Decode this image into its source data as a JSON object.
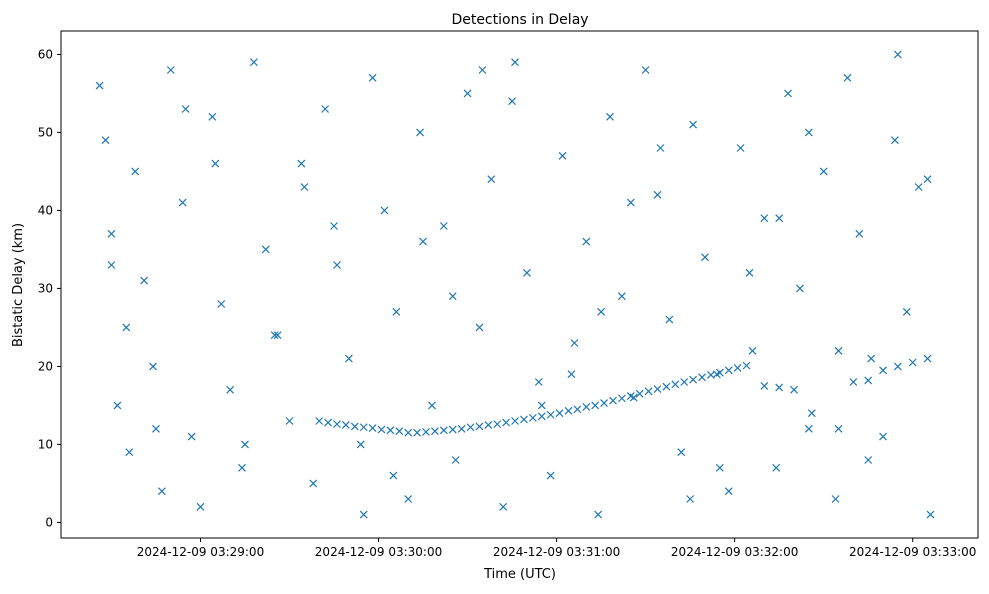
{
  "chart_data": {
    "type": "scatter",
    "title": "Detections in Delay",
    "xlabel": "Time (UTC)",
    "ylabel": "Bistatic Delay (km)",
    "x_axis_kind": "datetime",
    "xlim": [
      "2024-12-09 03:28:13",
      "2024-12-09 03:33:22"
    ],
    "ylim": [
      -2,
      63
    ],
    "x_ticks": [
      "2024-12-09 03:29:00",
      "2024-12-09 03:30:00",
      "2024-12-09 03:31:00",
      "2024-12-09 03:32:00",
      "2024-12-09 03:33:00"
    ],
    "y_ticks": [
      0,
      10,
      20,
      30,
      40,
      50,
      60
    ],
    "grid": false,
    "marker": "x",
    "color": "#1f77b4",
    "series": [
      {
        "x": [
          "2024-12-09 03:28:26",
          "2024-12-09 03:28:28",
          "2024-12-09 03:28:30",
          "2024-12-09 03:28:32",
          "2024-12-09 03:28:36",
          "2024-12-09 03:28:38",
          "2024-12-09 03:28:41",
          "2024-12-09 03:28:44",
          "2024-12-09 03:28:47",
          "2024-12-09 03:28:50",
          "2024-12-09 03:28:54",
          "2024-12-09 03:28:57",
          "2024-12-09 03:29:00",
          "2024-12-09 03:29:04",
          "2024-12-09 03:29:07",
          "2024-12-09 03:29:10",
          "2024-12-09 03:29:14",
          "2024-12-09 03:29:18",
          "2024-12-09 03:29:22",
          "2024-12-09 03:29:26",
          "2024-12-09 03:29:30",
          "2024-12-09 03:29:34",
          "2024-12-09 03:29:38",
          "2024-12-09 03:29:42",
          "2024-12-09 03:29:46",
          "2024-12-09 03:29:50",
          "2024-12-09 03:29:54",
          "2024-12-09 03:29:58",
          "2024-12-09 03:30:02",
          "2024-12-09 03:30:06",
          "2024-12-09 03:30:10",
          "2024-12-09 03:30:14",
          "2024-12-09 03:30:18",
          "2024-12-09 03:30:22",
          "2024-12-09 03:30:26",
          "2024-12-09 03:30:30",
          "2024-12-09 03:30:34",
          "2024-12-09 03:30:38",
          "2024-12-09 03:30:42",
          "2024-12-09 03:30:46",
          "2024-12-09 03:30:50",
          "2024-12-09 03:30:54",
          "2024-12-09 03:30:58",
          "2024-12-09 03:31:02",
          "2024-12-09 03:31:06",
          "2024-12-09 03:31:10",
          "2024-12-09 03:31:14",
          "2024-12-09 03:31:18",
          "2024-12-09 03:31:22",
          "2024-12-09 03:31:26",
          "2024-12-09 03:31:30",
          "2024-12-09 03:31:34",
          "2024-12-09 03:31:38",
          "2024-12-09 03:31:42",
          "2024-12-09 03:31:46",
          "2024-12-09 03:31:50",
          "2024-12-09 03:31:54",
          "2024-12-09 03:31:58",
          "2024-12-09 03:32:02",
          "2024-12-09 03:32:06",
          "2024-12-09 03:32:10",
          "2024-12-09 03:32:14",
          "2024-12-09 03:32:18",
          "2024-12-09 03:32:22",
          "2024-12-09 03:32:26",
          "2024-12-09 03:32:30",
          "2024-12-09 03:32:34",
          "2024-12-09 03:32:38",
          "2024-12-09 03:32:42",
          "2024-12-09 03:32:46",
          "2024-12-09 03:32:50",
          "2024-12-09 03:32:54",
          "2024-12-09 03:32:58",
          "2024-12-09 03:33:02",
          "2024-12-09 03:33:06",
          "2024-12-09 03:29:40",
          "2024-12-09 03:29:43",
          "2024-12-09 03:29:46",
          "2024-12-09 03:29:49",
          "2024-12-09 03:29:52",
          "2024-12-09 03:29:55",
          "2024-12-09 03:29:58",
          "2024-12-09 03:30:01",
          "2024-12-09 03:30:04",
          "2024-12-09 03:30:07",
          "2024-12-09 03:30:10",
          "2024-12-09 03:30:13",
          "2024-12-09 03:30:16",
          "2024-12-09 03:30:19",
          "2024-12-09 03:30:22",
          "2024-12-09 03:30:25",
          "2024-12-09 03:30:28",
          "2024-12-09 03:30:31",
          "2024-12-09 03:30:34",
          "2024-12-09 03:30:37",
          "2024-12-09 03:30:40",
          "2024-12-09 03:30:43",
          "2024-12-09 03:30:46",
          "2024-12-09 03:30:49",
          "2024-12-09 03:30:52",
          "2024-12-09 03:30:55",
          "2024-12-09 03:30:58",
          "2024-12-09 03:31:01",
          "2024-12-09 03:31:04",
          "2024-12-09 03:31:07",
          "2024-12-09 03:31:10",
          "2024-12-09 03:31:13",
          "2024-12-09 03:31:16",
          "2024-12-09 03:31:19",
          "2024-12-09 03:31:22",
          "2024-12-09 03:31:25",
          "2024-12-09 03:31:28",
          "2024-12-09 03:31:31",
          "2024-12-09 03:31:34",
          "2024-12-09 03:31:37",
          "2024-12-09 03:31:40",
          "2024-12-09 03:31:43",
          "2024-12-09 03:31:46",
          "2024-12-09 03:31:49",
          "2024-12-09 03:31:52",
          "2024-12-09 03:31:55",
          "2024-12-09 03:31:58",
          "2024-12-09 03:32:01",
          "2024-12-09 03:32:04",
          "2024-12-09 03:32:10",
          "2024-12-09 03:32:15",
          "2024-12-09 03:32:20",
          "2024-12-09 03:32:25",
          "2024-12-09 03:32:35",
          "2024-12-09 03:32:40",
          "2024-12-09 03:32:45",
          "2024-12-09 03:32:50",
          "2024-12-09 03:32:55",
          "2024-12-09 03:33:00",
          "2024-12-09 03:33:05",
          "2024-12-09 03:28:30",
          "2024-12-09 03:28:45",
          "2024-12-09 03:29:05",
          "2024-12-09 03:29:25",
          "2024-12-09 03:29:45",
          "2024-12-09 03:30:05",
          "2024-12-09 03:30:25",
          "2024-12-09 03:30:45",
          "2024-12-09 03:31:05",
          "2024-12-09 03:31:25",
          "2024-12-09 03:31:45",
          "2024-12-09 03:32:05",
          "2024-12-09 03:32:25",
          "2024-12-09 03:32:45",
          "2024-12-09 03:33:05",
          "2024-12-09 03:28:35",
          "2024-12-09 03:28:55",
          "2024-12-09 03:29:15",
          "2024-12-09 03:29:35",
          "2024-12-09 03:29:55",
          "2024-12-09 03:30:15",
          "2024-12-09 03:30:35",
          "2024-12-09 03:30:55",
          "2024-12-09 03:31:15",
          "2024-12-09 03:31:35",
          "2024-12-09 03:31:55",
          "2024-12-09 03:32:15",
          "2024-12-09 03:32:35",
          "2024-12-09 03:32:55"
        ],
        "y": [
          56,
          49,
          37,
          15,
          9,
          45,
          31,
          20,
          4,
          58,
          41,
          11,
          2,
          52,
          28,
          17,
          7,
          59,
          35,
          24,
          13,
          46,
          5,
          53,
          33,
          21,
          10,
          57,
          40,
          27,
          3,
          50,
          15,
          38,
          8,
          55,
          25,
          44,
          2,
          59,
          32,
          18,
          6,
          47,
          23,
          36,
          1,
          52,
          29,
          16,
          58,
          42,
          26,
          9,
          51,
          34,
          19,
          4,
          48,
          22,
          39,
          7,
          55,
          30,
          14,
          45,
          3,
          57,
          37,
          21,
          11,
          49,
          27,
          43,
          1,
          13.0,
          12.8,
          12.6,
          12.5,
          12.3,
          12.2,
          12.1,
          11.9,
          11.8,
          11.7,
          11.5,
          11.5,
          11.6,
          11.7,
          11.8,
          11.9,
          12.0,
          12.2,
          12.3,
          12.5,
          12.6,
          12.8,
          13.0,
          13.2,
          13.4,
          13.6,
          13.8,
          14.0,
          14.3,
          14.5,
          14.8,
          15.0,
          15.3,
          15.6,
          15.9,
          16.2,
          16.5,
          16.8,
          17.1,
          17.4,
          17.7,
          18.0,
          18.3,
          18.6,
          18.9,
          19.2,
          19.5,
          19.8,
          20.1,
          17.5,
          17.3,
          17.0,
          12.0,
          12.0,
          18.0,
          18.2,
          19.5,
          20.0,
          20.5,
          21.0,
          33,
          12,
          46,
          24,
          38,
          6,
          29,
          54,
          19,
          41,
          3,
          32,
          50,
          8,
          44,
          25,
          53,
          10,
          43,
          1,
          36,
          58,
          15,
          27,
          48,
          7,
          39,
          22,
          60
        ]
      }
    ]
  }
}
